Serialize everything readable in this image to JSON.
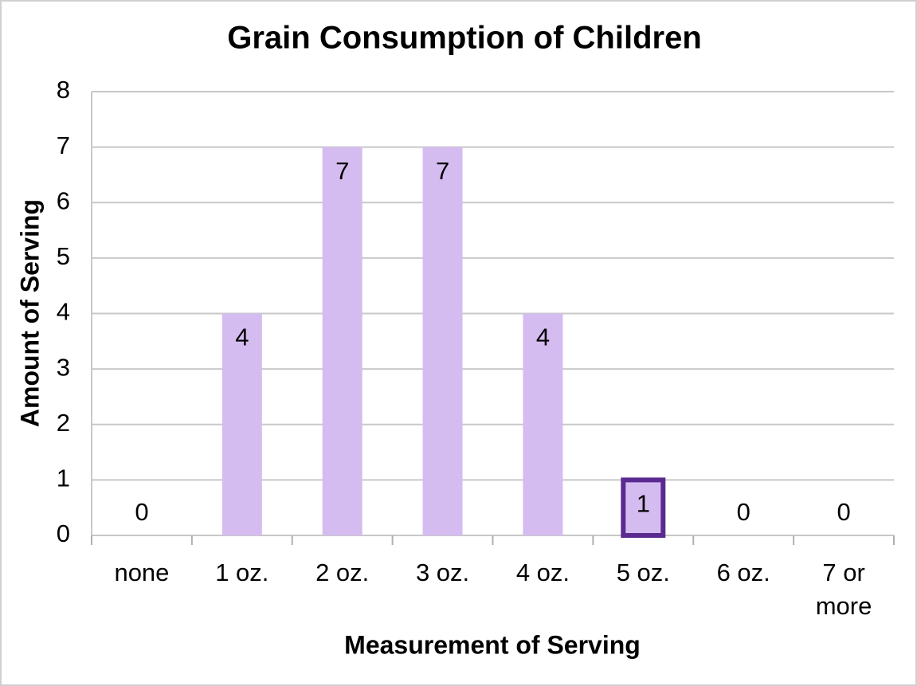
{
  "chart_data": {
    "type": "bar",
    "title": "Grain Consumption of Children",
    "x_label": "Measurement of Serving",
    "y_label": "Amount of Serving",
    "categories": [
      "none",
      "1 oz.",
      "2 oz.",
      "3 oz.",
      "4 oz.",
      "5 oz.",
      "6 oz.",
      "7 or more"
    ],
    "values": [
      0,
      4,
      7,
      7,
      4,
      1,
      0,
      0
    ],
    "color": "#d5bcf0",
    "highlight_index": 5,
    "highlight_color": "#5b2a91",
    "ylim": [
      0,
      8
    ],
    "yticks": [
      0,
      1,
      2,
      3,
      4,
      5,
      6,
      7,
      8
    ],
    "grid": true
  }
}
